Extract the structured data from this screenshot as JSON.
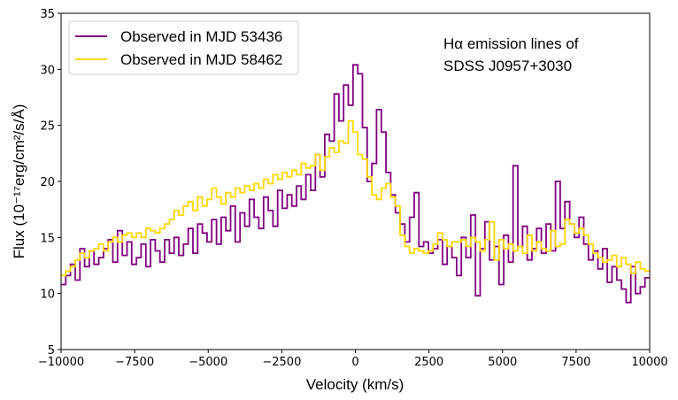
{
  "chart_data": {
    "type": "line",
    "style": "step",
    "title": "",
    "annotation": [
      "Hα emission lines of",
      "SDSS J0957+3030"
    ],
    "annotation_placement": "top-right",
    "xlabel": "Velocity (km/s)",
    "ylabel": "Flux (10⁻¹⁷erg/cm²/s/Å)",
    "xlim": [
      -10000,
      10000
    ],
    "ylim": [
      5,
      35
    ],
    "xticks": [
      -10000,
      -7500,
      -5000,
      -2500,
      0,
      2500,
      5000,
      7500,
      10000
    ],
    "xtick_labels": [
      "−10000",
      "−7500",
      "−5000",
      "−2500",
      "0",
      "2500",
      "5000",
      "7500",
      "10000"
    ],
    "yticks": [
      5,
      10,
      15,
      20,
      25,
      30,
      35
    ],
    "ytick_labels": [
      "5",
      "10",
      "15",
      "20",
      "25",
      "30",
      "35"
    ],
    "grid": false,
    "legend_placement": "top-left",
    "x_start": -10000,
    "x_step": 200,
    "series": [
      {
        "name": "Observed in MJD 53436",
        "color": "#800080",
        "values": [
          10.8,
          11.6,
          12.6,
          11.2,
          14.0,
          12.4,
          13.8,
          12.6,
          13.2,
          14.0,
          14.8,
          12.8,
          15.6,
          13.4,
          14.6,
          12.6,
          13.2,
          14.4,
          12.4,
          14.8,
          13.8,
          12.8,
          14.8,
          13.6,
          15.0,
          13.4,
          14.4,
          15.8,
          13.6,
          16.2,
          15.4,
          14.6,
          16.6,
          14.4,
          16.8,
          15.6,
          17.8,
          14.6,
          17.2,
          16.0,
          18.4,
          16.8,
          15.8,
          18.6,
          17.4,
          16.0,
          19.2,
          17.6,
          18.8,
          17.8,
          19.6,
          18.4,
          20.6,
          19.2,
          22.4,
          20.4,
          24.2,
          23.6,
          27.8,
          25.4,
          28.6,
          26.8,
          30.4,
          29.6,
          24.8,
          20.0,
          21.6,
          26.4,
          24.4,
          20.8,
          18.8,
          17.2,
          16.2,
          14.6,
          16.8,
          19.0,
          14.2,
          14.6,
          13.6,
          14.0,
          14.8,
          12.6,
          14.2,
          13.2,
          11.6,
          15.0,
          13.2,
          17.0,
          9.8,
          14.0,
          16.4,
          13.0,
          14.2,
          10.8,
          15.2,
          12.8,
          21.4,
          14.2,
          16.0,
          13.0,
          14.0,
          15.8,
          13.6,
          16.2,
          13.8,
          20.0,
          15.8,
          18.2,
          16.2,
          15.0,
          16.8,
          14.4,
          13.0,
          13.8,
          12.2,
          14.0,
          11.0,
          12.4,
          11.2,
          10.4,
          9.2,
          12.4,
          10.0,
          10.6,
          11.4
        ],
        "values_note": "sampled at x_start + i*x_step where i covers -10000..+10000; remaining bins follow the local trend"
      },
      {
        "name": "Observed in MJD 58462",
        "color": "#FFD700",
        "values": [
          11.6,
          12.0,
          12.4,
          13.0,
          13.6,
          13.2,
          13.8,
          14.0,
          14.4,
          13.8,
          14.6,
          15.0,
          14.6,
          15.2,
          15.4,
          15.0,
          15.4,
          15.0,
          15.8,
          15.6,
          15.4,
          15.8,
          16.2,
          16.6,
          17.4,
          17.0,
          17.8,
          18.2,
          17.4,
          18.6,
          17.8,
          18.4,
          19.4,
          18.6,
          18.0,
          19.0,
          18.6,
          19.4,
          19.0,
          19.6,
          19.2,
          19.8,
          19.4,
          20.2,
          19.8,
          20.6,
          20.2,
          20.8,
          20.4,
          21.0,
          20.6,
          21.6,
          21.2,
          21.4,
          22.4,
          21.0,
          22.2,
          23.0,
          22.6,
          23.6,
          23.4,
          25.4,
          24.4,
          22.4,
          22.0,
          20.4,
          18.8,
          18.4,
          19.4,
          19.8,
          18.6,
          17.8,
          15.2,
          14.2,
          13.6,
          14.0,
          13.8,
          13.6,
          13.8,
          14.4,
          15.4,
          14.8,
          14.2,
          14.6,
          14.6,
          14.8,
          14.2,
          15.0,
          14.6,
          13.8,
          14.8,
          16.4,
          13.0,
          14.8,
          14.0,
          14.4,
          13.8,
          14.2,
          13.6,
          15.2,
          13.8,
          14.6,
          14.0,
          13.8,
          15.6,
          14.2,
          14.4,
          16.6,
          16.2,
          15.4,
          15.8,
          15.2,
          14.4,
          13.6,
          13.2,
          12.8,
          13.0,
          13.4,
          12.4,
          13.2,
          12.6,
          11.8,
          12.8,
          12.2,
          12.0
        ]
      }
    ]
  }
}
